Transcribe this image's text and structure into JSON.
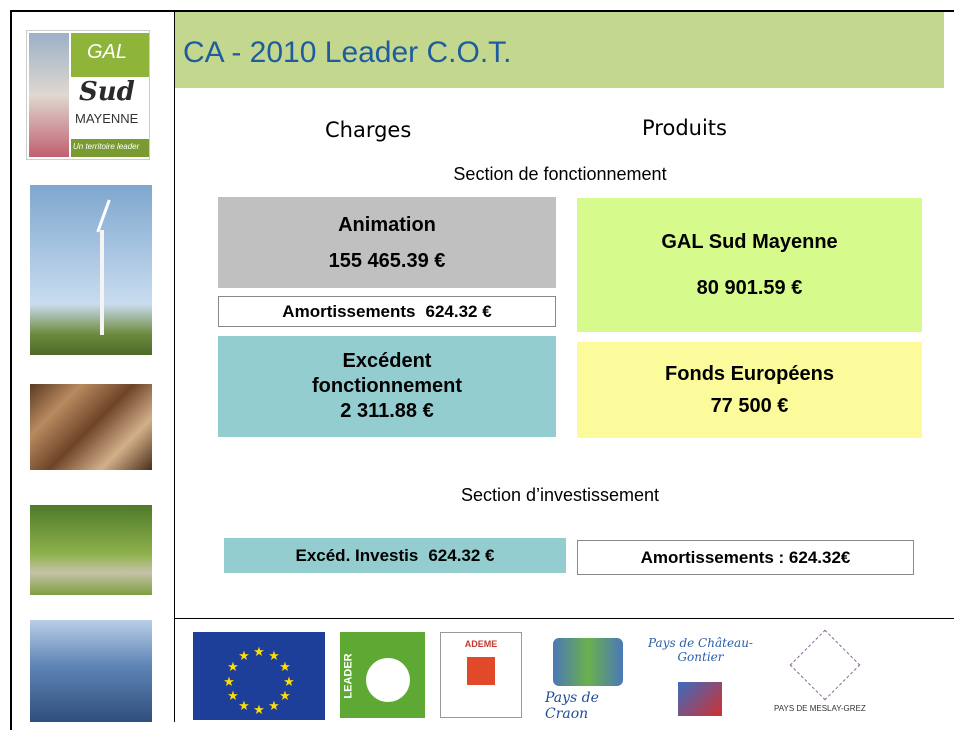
{
  "title": "CA - 2010 Leader C.O.T.",
  "side_logo": {
    "top": "GAL",
    "name": "Sud",
    "region": "MAYENNE",
    "tagline": "Un territoire leader"
  },
  "columns": {
    "charges": "Charges",
    "produits": "Produits"
  },
  "fonctionnement": {
    "heading": "Section de fonctionnement",
    "animation": {
      "label": "Animation",
      "amount": "155 465.39 €"
    },
    "amortissements": {
      "label": "Amortissements",
      "amount": "624.32 €"
    },
    "excedent": {
      "label1": "Excédent",
      "label2": "fonctionnement",
      "amount": "2 311.88 €"
    },
    "gal": {
      "label": "GAL Sud Mayenne",
      "amount": "80 901.59 €"
    },
    "fonds": {
      "label": "Fonds Européens",
      "amount": "77 500 €"
    }
  },
  "investissement": {
    "heading": "Section d’investissement",
    "excedent": {
      "label": "Excéd. Investis",
      "amount": "624.32 €"
    },
    "amortissements": "Amortissements : 624.32€"
  },
  "logos": {
    "leader": "LEADER",
    "ademe": "ADEME",
    "craon": "Pays de Craon",
    "chateau": "Pays de Château-Gontier",
    "meslay": "PAYS DE MESLAY-GREZ"
  }
}
